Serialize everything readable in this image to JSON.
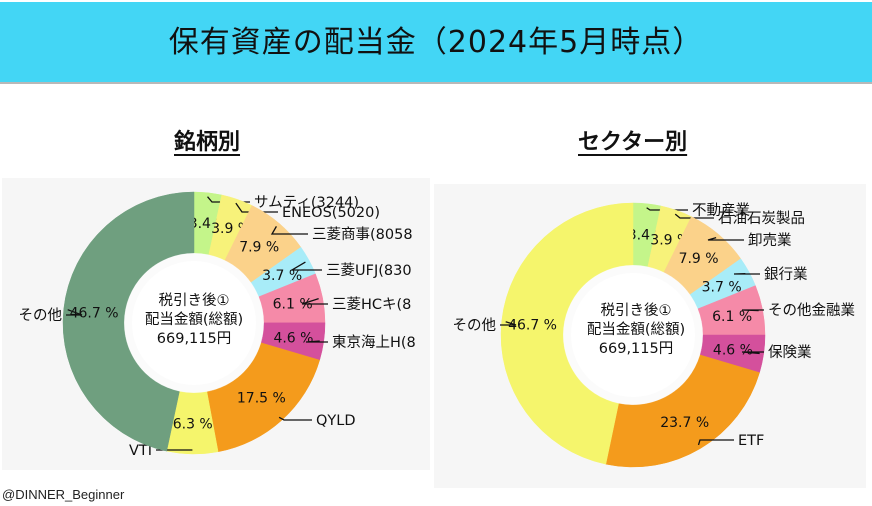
{
  "banner": {
    "title": "保有資産の配当金（2024年5月時点）"
  },
  "headings": {
    "left": "銘柄別",
    "right": "セクター別"
  },
  "center_label": {
    "line1": "税引き後①",
    "line2": "配当金額(総額)",
    "line3": "669,115円"
  },
  "credit": "@DINNER_Beginner",
  "colors": {
    "green_light": "#c4f58a",
    "yellow_pale": "#f7f27a",
    "orange_pale": "#fbd28a",
    "cyan": "#a8ecf8",
    "pink": "#f58aa8",
    "magenta": "#d4509c",
    "orange": "#f49b1c",
    "yellow": "#f5f56c",
    "grey_green": "#6f9f7f"
  },
  "chart_data": [
    {
      "type": "pie",
      "variant": "donut",
      "title": "銘柄別",
      "slices": [
        {
          "label": "サムティ(3244)",
          "value": 3.4,
          "pct": "3.4 %",
          "color": "#c4f58a"
        },
        {
          "label": "ENEOS(5020)",
          "value": 3.9,
          "pct": "3.9 %",
          "color": "#f7f27a"
        },
        {
          "label": "三菱商事(8058",
          "value": 7.9,
          "pct": "7.9 %",
          "color": "#fbd28a"
        },
        {
          "label": "三菱UFJ(830",
          "value": 3.7,
          "pct": "3.7 %",
          "color": "#a8ecf8"
        },
        {
          "label": "三菱HCキ(8",
          "value": 6.1,
          "pct": "6.1 %",
          "color": "#f58aa8"
        },
        {
          "label": "東京海上H(8",
          "value": 4.6,
          "pct": "4.6 %",
          "color": "#d4509c"
        },
        {
          "label": "QYLD",
          "value": 17.5,
          "pct": "17.5 %",
          "color": "#f49b1c"
        },
        {
          "label": "VTI",
          "value": 6.3,
          "pct": "6.3 %",
          "color": "#f5f56c"
        },
        {
          "label": "その他",
          "value": 46.7,
          "pct": "46.7 %",
          "color": "#6f9f7f"
        }
      ]
    },
    {
      "type": "pie",
      "variant": "donut",
      "title": "セクター別",
      "slices": [
        {
          "label": "不動産業",
          "value": 3.4,
          "pct": "3.4 %",
          "color": "#c4f58a"
        },
        {
          "label": "石油石炭製品",
          "value": 3.9,
          "pct": "3.9 %",
          "color": "#f7f27a"
        },
        {
          "label": "卸売業",
          "value": 7.9,
          "pct": "7.9 %",
          "color": "#fbd28a"
        },
        {
          "label": "銀行業",
          "value": 3.7,
          "pct": "3.7 %",
          "color": "#a8ecf8"
        },
        {
          "label": "その他金融業",
          "value": 6.1,
          "pct": "6.1 %",
          "color": "#f58aa8"
        },
        {
          "label": "保険業",
          "value": 4.6,
          "pct": "4.6 %",
          "color": "#d4509c"
        },
        {
          "label": "ETF",
          "value": 23.7,
          "pct": "23.7 %",
          "color": "#f49b1c"
        },
        {
          "label": "その他",
          "value": 46.7,
          "pct": "46.7 %",
          "color": "#f5f56c"
        }
      ]
    }
  ]
}
